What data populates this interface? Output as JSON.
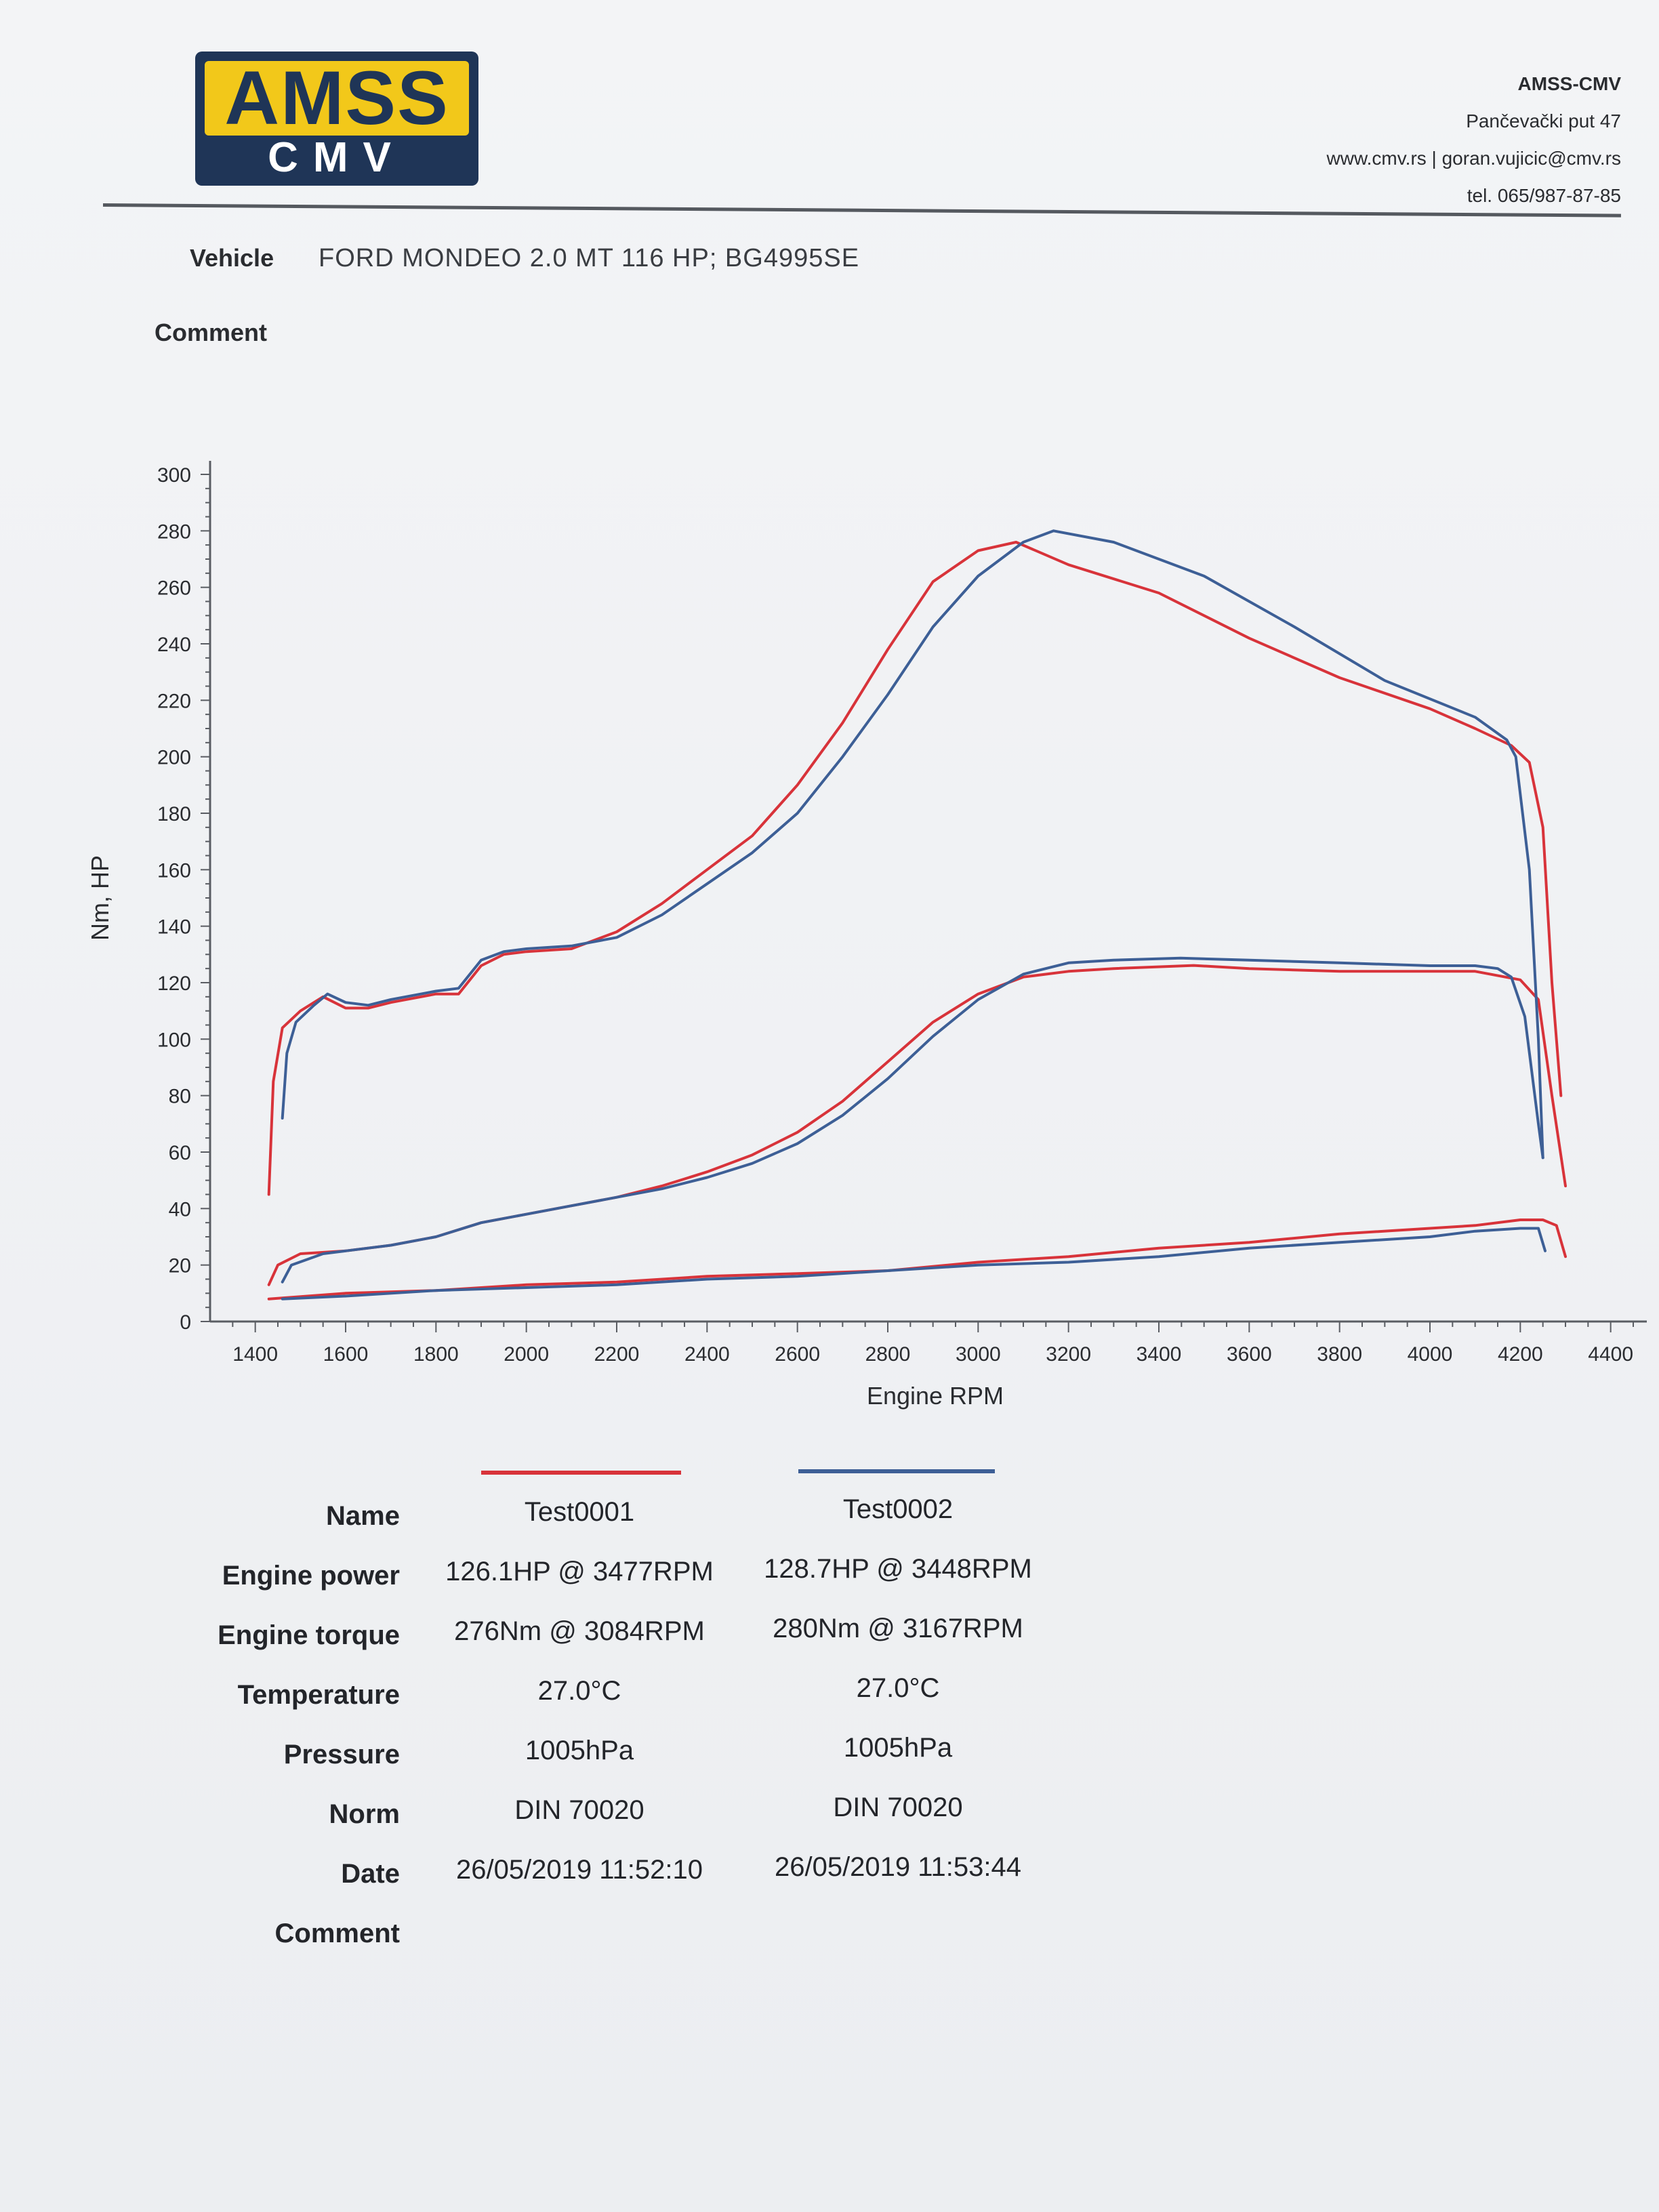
{
  "header": {
    "logo_top": "AMSS",
    "logo_bottom": "CMV",
    "company_name": "AMSS-CMV",
    "address": "Pančevački put 47",
    "web_email": "www.cmv.rs | goran.vujicic@cmv.rs",
    "phone": "tel. 065/987-87-85"
  },
  "vehicle": {
    "label": "Vehicle",
    "value": "FORD MONDEO 2.0 MT 116 HP; BG4995SE"
  },
  "comment": {
    "label": "Comment",
    "value": ""
  },
  "colors": {
    "test1": "#d8333a",
    "test2": "#3d5f96"
  },
  "chart_data": {
    "type": "line",
    "xlabel": "Engine RPM",
    "ylabel": "Nm, HP",
    "xlim": [
      1300,
      4450
    ],
    "ylim": [
      0,
      300
    ],
    "xticks": [
      1400,
      1600,
      1800,
      2000,
      2200,
      2400,
      2600,
      2800,
      3000,
      3200,
      3400,
      3600,
      3800,
      4000,
      4200,
      4400
    ],
    "yticks": [
      0,
      20,
      40,
      60,
      80,
      100,
      120,
      140,
      160,
      180,
      200,
      220,
      240,
      260,
      280,
      300
    ],
    "legend": "below",
    "grid": false,
    "series": [
      {
        "name": "Test0001",
        "color": "#d8333a",
        "points": [
          [
            1430,
            45
          ],
          [
            1440,
            85
          ],
          [
            1460,
            104
          ],
          [
            1500,
            110
          ],
          [
            1550,
            115
          ],
          [
            1600,
            111
          ],
          [
            1650,
            111
          ],
          [
            1700,
            113
          ],
          [
            1800,
            116
          ],
          [
            1850,
            116
          ],
          [
            1900,
            126
          ],
          [
            1950,
            130
          ],
          [
            2000,
            131
          ],
          [
            2100,
            132
          ],
          [
            2200,
            138
          ],
          [
            2300,
            148
          ],
          [
            2400,
            160
          ],
          [
            2500,
            172
          ],
          [
            2600,
            190
          ],
          [
            2700,
            212
          ],
          [
            2800,
            238
          ],
          [
            2900,
            262
          ],
          [
            3000,
            273
          ],
          [
            3084,
            276
          ],
          [
            3200,
            268
          ],
          [
            3400,
            258
          ],
          [
            3600,
            242
          ],
          [
            3800,
            228
          ],
          [
            4000,
            217
          ],
          [
            4100,
            210
          ],
          [
            4180,
            204
          ],
          [
            4220,
            198
          ],
          [
            4250,
            175
          ],
          [
            4270,
            120
          ],
          [
            4290,
            80
          ]
        ]
      },
      {
        "name": "Test0001",
        "color": "#d8333a",
        "points": [
          [
            1430,
            13
          ],
          [
            1450,
            20
          ],
          [
            1500,
            24
          ],
          [
            1600,
            25
          ],
          [
            1700,
            27
          ],
          [
            1800,
            30
          ],
          [
            1900,
            35
          ],
          [
            2000,
            38
          ],
          [
            2100,
            41
          ],
          [
            2200,
            44
          ],
          [
            2300,
            48
          ],
          [
            2400,
            53
          ],
          [
            2500,
            59
          ],
          [
            2600,
            67
          ],
          [
            2700,
            78
          ],
          [
            2800,
            92
          ],
          [
            2900,
            106
          ],
          [
            3000,
            116
          ],
          [
            3100,
            122
          ],
          [
            3200,
            124
          ],
          [
            3300,
            125
          ],
          [
            3477,
            126.1
          ],
          [
            3600,
            125
          ],
          [
            3800,
            124
          ],
          [
            4000,
            124
          ],
          [
            4100,
            124
          ],
          [
            4200,
            121
          ],
          [
            4240,
            114
          ],
          [
            4270,
            80
          ],
          [
            4300,
            48
          ]
        ]
      },
      {
        "name": "Test0001",
        "color": "#d8333a",
        "points": [
          [
            1430,
            8
          ],
          [
            1600,
            10
          ],
          [
            1800,
            11
          ],
          [
            2000,
            13
          ],
          [
            2200,
            14
          ],
          [
            2400,
            16
          ],
          [
            2600,
            17
          ],
          [
            2800,
            18
          ],
          [
            3000,
            21
          ],
          [
            3200,
            23
          ],
          [
            3400,
            26
          ],
          [
            3600,
            28
          ],
          [
            3800,
            31
          ],
          [
            4000,
            33
          ],
          [
            4100,
            34
          ],
          [
            4200,
            36
          ],
          [
            4250,
            36
          ],
          [
            4280,
            34
          ],
          [
            4300,
            23
          ]
        ]
      },
      {
        "name": "Test0002",
        "color": "#3d5f96",
        "points": [
          [
            1460,
            72
          ],
          [
            1470,
            95
          ],
          [
            1490,
            106
          ],
          [
            1530,
            112
          ],
          [
            1560,
            116
          ],
          [
            1600,
            113
          ],
          [
            1650,
            112
          ],
          [
            1700,
            114
          ],
          [
            1800,
            117
          ],
          [
            1850,
            118
          ],
          [
            1900,
            128
          ],
          [
            1950,
            131
          ],
          [
            2000,
            132
          ],
          [
            2100,
            133
          ],
          [
            2200,
            136
          ],
          [
            2300,
            144
          ],
          [
            2400,
            155
          ],
          [
            2500,
            166
          ],
          [
            2600,
            180
          ],
          [
            2700,
            200
          ],
          [
            2800,
            222
          ],
          [
            2900,
            246
          ],
          [
            3000,
            264
          ],
          [
            3100,
            276
          ],
          [
            3167,
            280
          ],
          [
            3300,
            276
          ],
          [
            3500,
            264
          ],
          [
            3700,
            246
          ],
          [
            3900,
            227
          ],
          [
            4100,
            214
          ],
          [
            4170,
            206
          ],
          [
            4190,
            200
          ],
          [
            4220,
            160
          ],
          [
            4240,
            100
          ],
          [
            4250,
            58
          ]
        ]
      },
      {
        "name": "Test0002",
        "color": "#3d5f96",
        "points": [
          [
            1460,
            14
          ],
          [
            1480,
            20
          ],
          [
            1550,
            24
          ],
          [
            1600,
            25
          ],
          [
            1700,
            27
          ],
          [
            1800,
            30
          ],
          [
            1900,
            35
          ],
          [
            2000,
            38
          ],
          [
            2100,
            41
          ],
          [
            2200,
            44
          ],
          [
            2300,
            47
          ],
          [
            2400,
            51
          ],
          [
            2500,
            56
          ],
          [
            2600,
            63
          ],
          [
            2700,
            73
          ],
          [
            2800,
            86
          ],
          [
            2900,
            101
          ],
          [
            3000,
            114
          ],
          [
            3100,
            123
          ],
          [
            3200,
            127
          ],
          [
            3300,
            128
          ],
          [
            3448,
            128.7
          ],
          [
            3600,
            128
          ],
          [
            3800,
            127
          ],
          [
            4000,
            126
          ],
          [
            4100,
            126
          ],
          [
            4150,
            125
          ],
          [
            4180,
            122
          ],
          [
            4210,
            108
          ],
          [
            4240,
            70
          ],
          [
            4250,
            58
          ]
        ]
      },
      {
        "name": "Test0002",
        "color": "#3d5f96",
        "points": [
          [
            1460,
            8
          ],
          [
            1600,
            9
          ],
          [
            1800,
            11
          ],
          [
            2000,
            12
          ],
          [
            2200,
            13
          ],
          [
            2400,
            15
          ],
          [
            2600,
            16
          ],
          [
            2800,
            18
          ],
          [
            3000,
            20
          ],
          [
            3200,
            21
          ],
          [
            3400,
            23
          ],
          [
            3600,
            26
          ],
          [
            3800,
            28
          ],
          [
            4000,
            30
          ],
          [
            4100,
            32
          ],
          [
            4200,
            33
          ],
          [
            4240,
            33
          ],
          [
            4255,
            25
          ]
        ]
      }
    ]
  },
  "legend_lines": [
    {
      "name": "Test0001",
      "color": "#d8333a"
    },
    {
      "name": "Test0002",
      "color": "#3d5f96"
    }
  ],
  "table": {
    "rows": [
      {
        "label": "Name",
        "test1": "Test0001",
        "test2": "Test0002"
      },
      {
        "label": "Engine power",
        "test1": "126.1HP @  3477RPM",
        "test2": "128.7HP @  3448RPM"
      },
      {
        "label": "Engine torque",
        "test1": "276Nm @ 3084RPM",
        "test2": "280Nm @ 3167RPM"
      },
      {
        "label": "Temperature",
        "test1": "27.0°C",
        "test2": "27.0°C"
      },
      {
        "label": "Pressure",
        "test1": "1005hPa",
        "test2": "1005hPa"
      },
      {
        "label": "Norm",
        "test1": "DIN 70020",
        "test2": "DIN 70020"
      },
      {
        "label": "Date",
        "test1": "26/05/2019 11:52:10",
        "test2": "26/05/2019 11:53:44"
      },
      {
        "label": "Comment",
        "test1": "",
        "test2": ""
      }
    ]
  }
}
